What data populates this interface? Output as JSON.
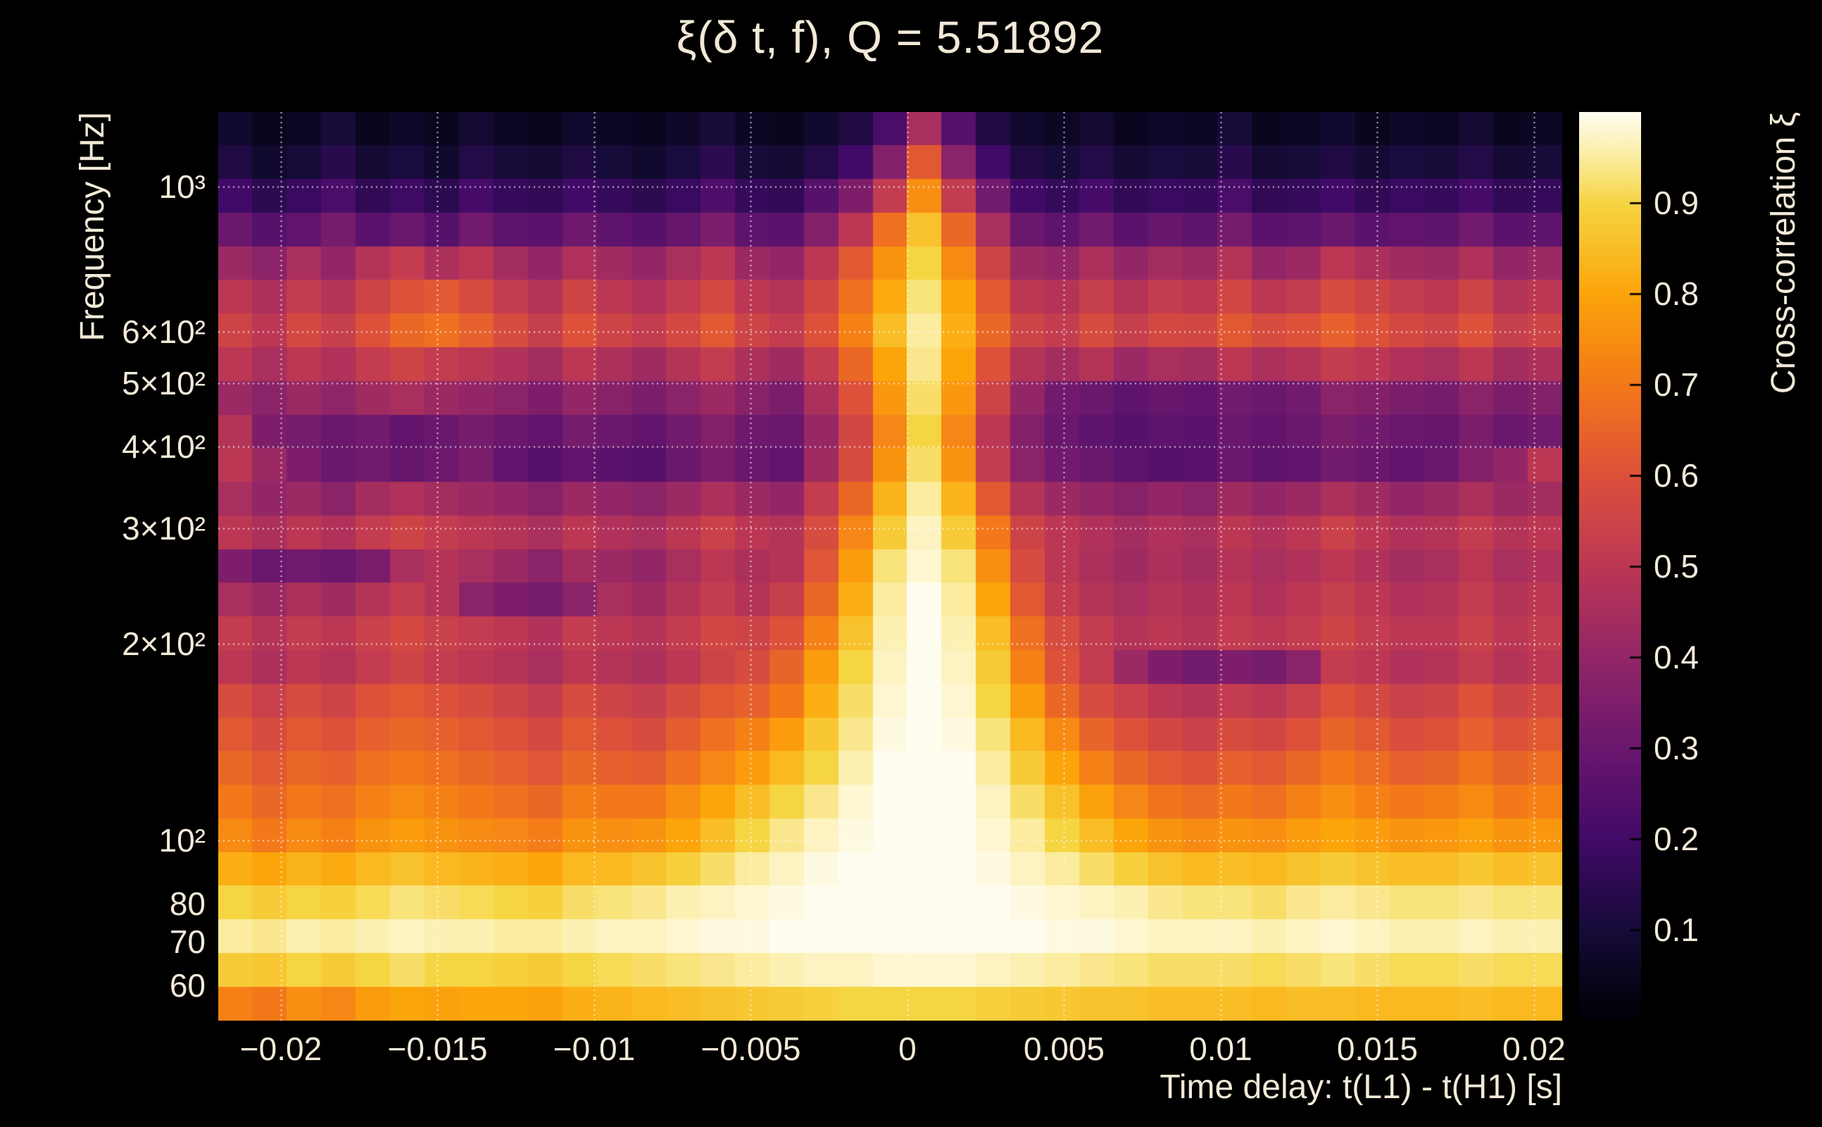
{
  "style": {
    "background": "#000000",
    "text_color": "#f2e9d8",
    "grid_color": "#ffffff"
  },
  "chart_data": {
    "type": "heatmap",
    "title": "ξ(δ t, f), Q = 5.51892",
    "xlabel": "Time delay: t(L1) - t(H1) [s]",
    "ylabel": "Frequency [Hz]",
    "colorbar_label": "Cross-correlation ξ",
    "x_axis": {
      "range": [
        -0.022,
        0.0209
      ],
      "tick_values": [
        -0.02,
        -0.015,
        -0.01,
        -0.005,
        0,
        0.005,
        0.01,
        0.015,
        0.02
      ],
      "tick_labels": [
        "−0.02",
        "−0.015",
        "−0.01",
        "−0.005",
        "0",
        "0.005",
        "0.01",
        "0.015",
        "0.02"
      ]
    },
    "y_axis": {
      "scale": "log",
      "range_hz": [
        53,
        1300
      ],
      "tick_values": [
        1000,
        600,
        500,
        400,
        300,
        200,
        100,
        80,
        70,
        60
      ],
      "tick_labels": [
        "10³",
        "6×10²",
        "5×10²",
        "4×10²",
        "3×10²",
        "2×10²",
        "10²",
        "80",
        "70",
        "60"
      ]
    },
    "colorbar": {
      "range": [
        0,
        1
      ],
      "tick_values": [
        0.1,
        0.2,
        0.3,
        0.4,
        0.5,
        0.6,
        0.7,
        0.8,
        0.9
      ],
      "tick_labels": [
        "0.1",
        "0.2",
        "0.3",
        "0.4",
        "0.5",
        "0.6",
        "0.7",
        "0.8",
        "0.9"
      ]
    },
    "colormap_stops": [
      [
        0,
        "#000004"
      ],
      [
        0.1,
        "#160b39"
      ],
      [
        0.2,
        "#420a68"
      ],
      [
        0.3,
        "#6a176e"
      ],
      [
        0.4,
        "#932667"
      ],
      [
        0.5,
        "#bc3754"
      ],
      [
        0.6,
        "#dd513a"
      ],
      [
        0.7,
        "#f37819"
      ],
      [
        0.8,
        "#fca50a"
      ],
      [
        0.9,
        "#f6d543"
      ],
      [
        0.96,
        "#fcf0b2"
      ],
      [
        1,
        "#fffdf0"
      ]
    ],
    "values": [
      [
        0.08,
        0.05,
        0.06,
        0.1,
        0.05,
        0.07,
        0.05,
        0.09,
        0.06,
        0.05,
        0.08,
        0.06,
        0.05,
        0.07,
        0.1,
        0.06,
        0.05,
        0.08,
        0.12,
        0.22,
        0.45,
        0.25,
        0.12,
        0.08,
        0.06,
        0.09,
        0.05,
        0.07,
        0.06,
        0.1,
        0.05,
        0.06,
        0.08,
        0.05,
        0.07,
        0.06,
        0.09,
        0.05,
        0.06
      ],
      [
        0.12,
        0.08,
        0.1,
        0.14,
        0.09,
        0.11,
        0.08,
        0.13,
        0.1,
        0.09,
        0.12,
        0.1,
        0.08,
        0.11,
        0.15,
        0.1,
        0.09,
        0.13,
        0.2,
        0.36,
        0.62,
        0.38,
        0.2,
        0.12,
        0.1,
        0.13,
        0.09,
        0.11,
        0.1,
        0.14,
        0.09,
        0.1,
        0.12,
        0.09,
        0.11,
        0.1,
        0.13,
        0.09,
        0.1
      ],
      [
        0.2,
        0.15,
        0.18,
        0.22,
        0.16,
        0.19,
        0.15,
        0.21,
        0.17,
        0.16,
        0.2,
        0.17,
        0.15,
        0.18,
        0.23,
        0.17,
        0.16,
        0.25,
        0.35,
        0.52,
        0.75,
        0.52,
        0.32,
        0.2,
        0.17,
        0.21,
        0.16,
        0.18,
        0.17,
        0.22,
        0.16,
        0.17,
        0.2,
        0.16,
        0.18,
        0.17,
        0.21,
        0.16,
        0.17
      ],
      [
        0.3,
        0.25,
        0.28,
        0.33,
        0.26,
        0.3,
        0.25,
        0.32,
        0.27,
        0.26,
        0.31,
        0.27,
        0.25,
        0.29,
        0.34,
        0.27,
        0.26,
        0.36,
        0.5,
        0.68,
        0.86,
        0.66,
        0.45,
        0.3,
        0.27,
        0.32,
        0.26,
        0.29,
        0.27,
        0.33,
        0.26,
        0.27,
        0.3,
        0.26,
        0.28,
        0.27,
        0.32,
        0.26,
        0.27
      ],
      [
        0.42,
        0.38,
        0.45,
        0.4,
        0.48,
        0.52,
        0.46,
        0.5,
        0.44,
        0.4,
        0.47,
        0.43,
        0.4,
        0.45,
        0.5,
        0.42,
        0.4,
        0.5,
        0.62,
        0.76,
        0.9,
        0.74,
        0.55,
        0.42,
        0.4,
        0.46,
        0.4,
        0.44,
        0.42,
        0.48,
        0.4,
        0.42,
        0.5,
        0.46,
        0.43,
        0.42,
        0.47,
        0.4,
        0.42
      ],
      [
        0.5,
        0.46,
        0.52,
        0.48,
        0.55,
        0.6,
        0.62,
        0.58,
        0.52,
        0.48,
        0.55,
        0.5,
        0.47,
        0.52,
        0.57,
        0.5,
        0.48,
        0.56,
        0.68,
        0.81,
        0.93,
        0.8,
        0.62,
        0.5,
        0.48,
        0.53,
        0.48,
        0.52,
        0.5,
        0.56,
        0.5,
        0.52,
        0.58,
        0.55,
        0.52,
        0.5,
        0.55,
        0.48,
        0.5
      ],
      [
        0.55,
        0.5,
        0.57,
        0.53,
        0.6,
        0.66,
        0.68,
        0.64,
        0.58,
        0.53,
        0.6,
        0.55,
        0.52,
        0.57,
        0.62,
        0.55,
        0.52,
        0.6,
        0.72,
        0.85,
        0.95,
        0.82,
        0.66,
        0.55,
        0.52,
        0.58,
        0.53,
        0.57,
        0.56,
        0.62,
        0.58,
        0.6,
        0.64,
        0.6,
        0.57,
        0.55,
        0.6,
        0.53,
        0.55
      ],
      [
        0.5,
        0.45,
        0.5,
        0.47,
        0.52,
        0.55,
        0.52,
        0.5,
        0.47,
        0.44,
        0.5,
        0.46,
        0.43,
        0.48,
        0.52,
        0.46,
        0.43,
        0.52,
        0.66,
        0.8,
        0.94,
        0.8,
        0.6,
        0.48,
        0.44,
        0.48,
        0.42,
        0.45,
        0.44,
        0.5,
        0.46,
        0.48,
        0.52,
        0.5,
        0.47,
        0.45,
        0.5,
        0.44,
        0.46
      ],
      [
        0.42,
        0.38,
        0.42,
        0.39,
        0.43,
        0.45,
        0.42,
        0.4,
        0.38,
        0.35,
        0.4,
        0.37,
        0.34,
        0.38,
        0.42,
        0.37,
        0.34,
        0.46,
        0.6,
        0.77,
        0.92,
        0.77,
        0.55,
        0.4,
        0.32,
        0.3,
        0.27,
        0.29,
        0.28,
        0.32,
        0.3,
        0.32,
        0.38,
        0.36,
        0.34,
        0.33,
        0.38,
        0.34,
        0.36
      ],
      [
        0.48,
        0.35,
        0.33,
        0.3,
        0.32,
        0.28,
        0.3,
        0.33,
        0.3,
        0.28,
        0.33,
        0.3,
        0.28,
        0.32,
        0.36,
        0.31,
        0.3,
        0.41,
        0.56,
        0.73,
        0.9,
        0.73,
        0.5,
        0.36,
        0.3,
        0.27,
        0.25,
        0.27,
        0.26,
        0.3,
        0.28,
        0.3,
        0.34,
        0.32,
        0.3,
        0.29,
        0.34,
        0.3,
        0.32
      ],
      [
        0.5,
        0.42,
        0.35,
        0.3,
        0.32,
        0.29,
        0.31,
        0.34,
        0.28,
        0.25,
        0.28,
        0.26,
        0.25,
        0.3,
        0.34,
        0.3,
        0.28,
        0.43,
        0.58,
        0.76,
        0.92,
        0.76,
        0.52,
        0.38,
        0.32,
        0.3,
        0.27,
        0.25,
        0.26,
        0.3,
        0.27,
        0.28,
        0.32,
        0.3,
        0.28,
        0.3,
        0.36,
        0.4,
        0.5
      ],
      [
        0.45,
        0.4,
        0.42,
        0.38,
        0.44,
        0.47,
        0.44,
        0.42,
        0.4,
        0.37,
        0.42,
        0.4,
        0.38,
        0.42,
        0.46,
        0.42,
        0.4,
        0.52,
        0.66,
        0.83,
        0.95,
        0.83,
        0.62,
        0.48,
        0.42,
        0.4,
        0.37,
        0.4,
        0.38,
        0.43,
        0.4,
        0.42,
        0.46,
        0.43,
        0.4,
        0.42,
        0.46,
        0.42,
        0.44
      ],
      [
        0.5,
        0.46,
        0.5,
        0.47,
        0.52,
        0.55,
        0.52,
        0.5,
        0.48,
        0.45,
        0.5,
        0.47,
        0.45,
        0.5,
        0.54,
        0.5,
        0.48,
        0.58,
        0.73,
        0.88,
        0.97,
        0.88,
        0.7,
        0.55,
        0.5,
        0.47,
        0.44,
        0.47,
        0.45,
        0.5,
        0.47,
        0.5,
        0.54,
        0.5,
        0.47,
        0.48,
        0.52,
        0.48,
        0.5
      ],
      [
        0.35,
        0.3,
        0.32,
        0.3,
        0.34,
        0.45,
        0.48,
        0.45,
        0.42,
        0.38,
        0.44,
        0.42,
        0.4,
        0.45,
        0.5,
        0.46,
        0.48,
        0.61,
        0.78,
        0.93,
        0.98,
        0.93,
        0.75,
        0.58,
        0.5,
        0.46,
        0.43,
        0.46,
        0.44,
        0.48,
        0.45,
        0.47,
        0.5,
        0.47,
        0.44,
        0.45,
        0.5,
        0.45,
        0.47
      ],
      [
        0.45,
        0.42,
        0.46,
        0.43,
        0.48,
        0.52,
        0.48,
        0.38,
        0.35,
        0.33,
        0.38,
        0.45,
        0.43,
        0.48,
        0.52,
        0.48,
        0.53,
        0.66,
        0.82,
        0.95,
        1,
        0.95,
        0.8,
        0.62,
        0.52,
        0.48,
        0.45,
        0.48,
        0.46,
        0.5,
        0.47,
        0.5,
        0.53,
        0.5,
        0.47,
        0.48,
        0.52,
        0.48,
        0.5
      ],
      [
        0.52,
        0.48,
        0.52,
        0.5,
        0.54,
        0.57,
        0.54,
        0.52,
        0.5,
        0.47,
        0.52,
        0.5,
        0.48,
        0.52,
        0.56,
        0.55,
        0.6,
        0.72,
        0.86,
        0.96,
        1,
        0.96,
        0.85,
        0.68,
        0.58,
        0.52,
        0.48,
        0.5,
        0.48,
        0.52,
        0.5,
        0.52,
        0.55,
        0.52,
        0.5,
        0.5,
        0.54,
        0.5,
        0.52
      ],
      [
        0.5,
        0.46,
        0.5,
        0.48,
        0.52,
        0.55,
        0.52,
        0.5,
        0.48,
        0.45,
        0.5,
        0.48,
        0.46,
        0.5,
        0.55,
        0.58,
        0.65,
        0.78,
        0.9,
        0.97,
        1,
        0.97,
        0.88,
        0.72,
        0.6,
        0.52,
        0.42,
        0.35,
        0.32,
        0.35,
        0.33,
        0.38,
        0.52,
        0.5,
        0.47,
        0.48,
        0.52,
        0.48,
        0.5
      ],
      [
        0.58,
        0.54,
        0.58,
        0.55,
        0.6,
        0.62,
        0.6,
        0.58,
        0.55,
        0.52,
        0.58,
        0.55,
        0.53,
        0.58,
        0.62,
        0.64,
        0.7,
        0.82,
        0.92,
        0.98,
        1,
        0.98,
        0.9,
        0.78,
        0.66,
        0.58,
        0.54,
        0.5,
        0.48,
        0.52,
        0.5,
        0.54,
        0.6,
        0.57,
        0.54,
        0.55,
        0.6,
        0.55,
        0.57
      ],
      [
        0.62,
        0.58,
        0.62,
        0.6,
        0.64,
        0.66,
        0.64,
        0.62,
        0.6,
        0.57,
        0.62,
        0.6,
        0.58,
        0.63,
        0.68,
        0.72,
        0.78,
        0.87,
        0.94,
        0.99,
        1,
        0.99,
        0.93,
        0.84,
        0.74,
        0.65,
        0.6,
        0.56,
        0.54,
        0.58,
        0.56,
        0.6,
        0.65,
        0.62,
        0.59,
        0.6,
        0.64,
        0.6,
        0.62
      ],
      [
        0.66,
        0.62,
        0.66,
        0.64,
        0.68,
        0.7,
        0.68,
        0.66,
        0.64,
        0.61,
        0.66,
        0.64,
        0.63,
        0.68,
        0.73,
        0.78,
        0.84,
        0.9,
        0.96,
        1,
        1,
        1,
        0.95,
        0.88,
        0.8,
        0.72,
        0.66,
        0.62,
        0.6,
        0.64,
        0.62,
        0.66,
        0.7,
        0.67,
        0.64,
        0.65,
        0.69,
        0.65,
        0.67
      ],
      [
        0.7,
        0.66,
        0.7,
        0.68,
        0.72,
        0.74,
        0.72,
        0.7,
        0.68,
        0.66,
        0.71,
        0.7,
        0.7,
        0.75,
        0.8,
        0.85,
        0.9,
        0.94,
        0.98,
        1,
        1,
        1,
        0.97,
        0.92,
        0.86,
        0.79,
        0.73,
        0.69,
        0.67,
        0.7,
        0.68,
        0.72,
        0.75,
        0.72,
        0.7,
        0.71,
        0.74,
        0.7,
        0.72
      ],
      [
        0.74,
        0.7,
        0.74,
        0.72,
        0.76,
        0.78,
        0.76,
        0.74,
        0.73,
        0.71,
        0.76,
        0.75,
        0.76,
        0.8,
        0.85,
        0.9,
        0.94,
        0.97,
        0.99,
        1,
        1,
        1,
        0.98,
        0.95,
        0.9,
        0.85,
        0.8,
        0.76,
        0.74,
        0.76,
        0.75,
        0.78,
        0.8,
        0.78,
        0.76,
        0.77,
        0.79,
        0.76,
        0.77
      ],
      [
        0.82,
        0.8,
        0.83,
        0.81,
        0.84,
        0.86,
        0.84,
        0.83,
        0.82,
        0.8,
        0.84,
        0.84,
        0.86,
        0.89,
        0.92,
        0.95,
        0.97,
        0.99,
        1,
        1,
        1,
        1,
        0.99,
        0.97,
        0.95,
        0.92,
        0.89,
        0.86,
        0.84,
        0.85,
        0.84,
        0.86,
        0.88,
        0.86,
        0.85,
        0.85,
        0.87,
        0.85,
        0.86
      ],
      [
        0.9,
        0.88,
        0.9,
        0.89,
        0.91,
        0.93,
        0.92,
        0.91,
        0.9,
        0.89,
        0.92,
        0.93,
        0.94,
        0.96,
        0.97,
        0.98,
        0.99,
        1,
        1,
        1,
        1,
        1,
        1,
        0.99,
        0.98,
        0.97,
        0.96,
        0.94,
        0.93,
        0.93,
        0.92,
        0.94,
        0.95,
        0.94,
        0.93,
        0.93,
        0.94,
        0.93,
        0.93
      ],
      [
        0.95,
        0.94,
        0.96,
        0.95,
        0.96,
        0.97,
        0.96,
        0.96,
        0.95,
        0.95,
        0.96,
        0.97,
        0.97,
        0.98,
        0.99,
        0.99,
        1,
        1,
        1,
        1,
        1,
        1,
        1,
        1,
        0.99,
        0.99,
        0.98,
        0.97,
        0.97,
        0.97,
        0.96,
        0.97,
        0.98,
        0.97,
        0.96,
        0.96,
        0.97,
        0.96,
        0.96
      ],
      [
        0.88,
        0.87,
        0.9,
        0.88,
        0.9,
        0.92,
        0.9,
        0.9,
        0.89,
        0.88,
        0.9,
        0.91,
        0.92,
        0.93,
        0.94,
        0.95,
        0.96,
        0.97,
        0.97,
        0.98,
        0.98,
        0.98,
        0.97,
        0.96,
        0.95,
        0.94,
        0.93,
        0.92,
        0.92,
        0.92,
        0.91,
        0.92,
        0.93,
        0.92,
        0.91,
        0.91,
        0.92,
        0.91,
        0.91
      ],
      [
        0.72,
        0.7,
        0.75,
        0.73,
        0.78,
        0.8,
        0.79,
        0.8,
        0.8,
        0.79,
        0.82,
        0.83,
        0.84,
        0.85,
        0.86,
        0.87,
        0.88,
        0.89,
        0.9,
        0.9,
        0.9,
        0.9,
        0.89,
        0.88,
        0.87,
        0.86,
        0.86,
        0.85,
        0.85,
        0.85,
        0.84,
        0.85,
        0.85,
        0.84,
        0.84,
        0.84,
        0.85,
        0.84,
        0.84
      ]
    ]
  }
}
